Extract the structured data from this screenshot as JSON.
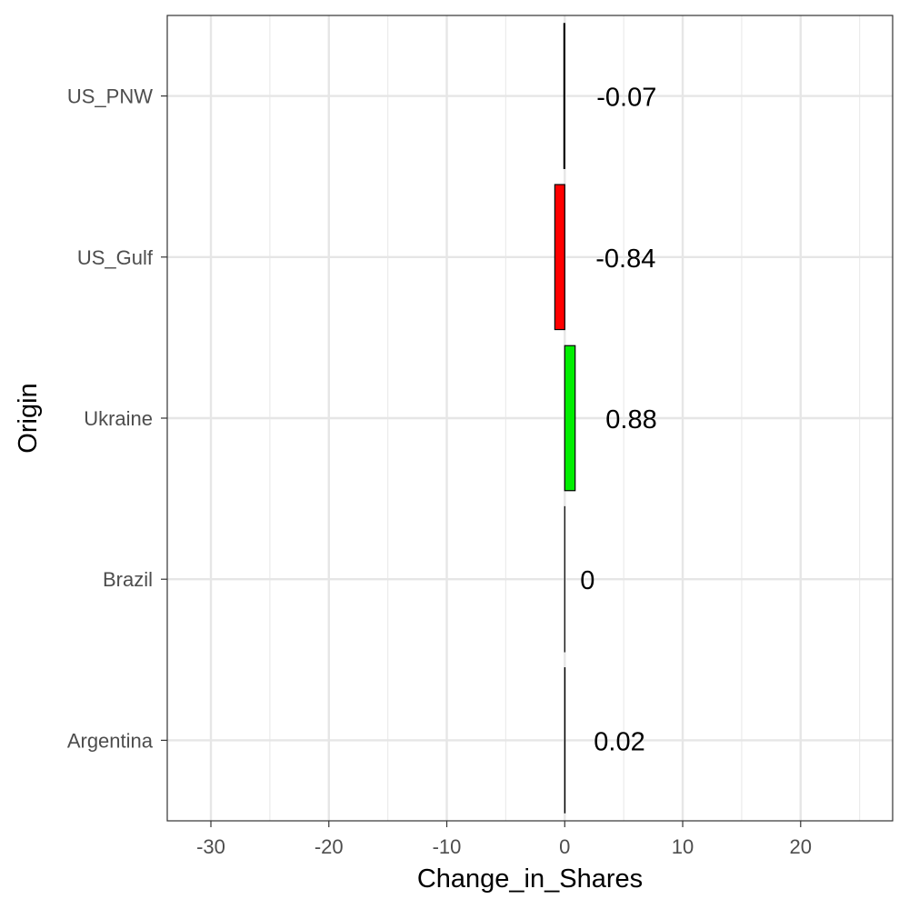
{
  "chart_data": {
    "type": "bar",
    "orientation": "horizontal",
    "categories": [
      "US_PNW",
      "US_Gulf",
      "Ukraine",
      "Brazil",
      "Argentina"
    ],
    "values": [
      -0.07,
      -0.84,
      0.88,
      0,
      0.02
    ],
    "data_labels": [
      "-0.07",
      "-0.84",
      "0.88",
      "0",
      "0.02"
    ],
    "bar_colors": [
      "#000000",
      "#ff0000",
      "#00ee00",
      "#000000",
      "#000000"
    ],
    "xlabel": "Change_in_Shares",
    "ylabel": "Origin",
    "xlim": [
      -33.7,
      27.8
    ],
    "x_ticks": [
      -30,
      -20,
      -10,
      0,
      10,
      20
    ],
    "x_tick_labels": [
      "-30",
      "-20",
      "-10",
      "0",
      "10",
      "20"
    ],
    "x_minor_ticks": [
      -25,
      -15,
      -5,
      5,
      15,
      25
    ],
    "grid": true,
    "legend": "none"
  }
}
